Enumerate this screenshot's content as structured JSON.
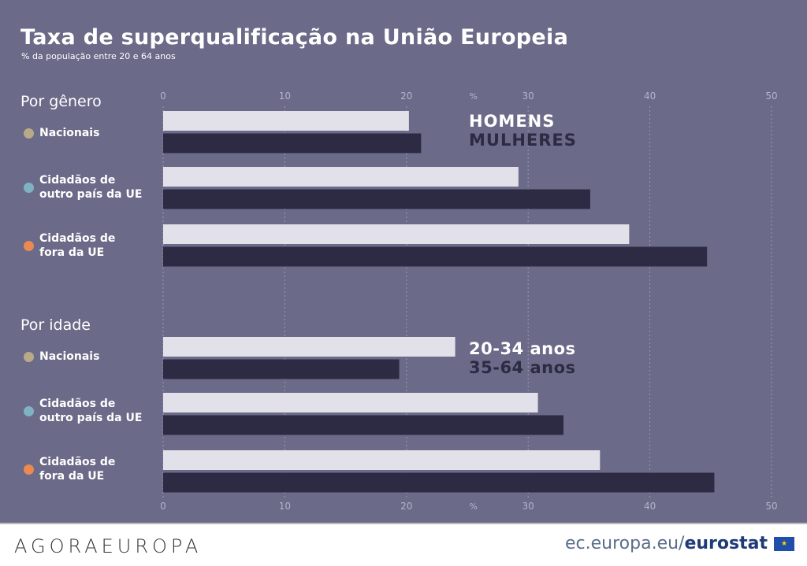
{
  "title": "Taxa de superqualificação na União Europeia",
  "subtitle": "% da população entre 20 e 64 anos",
  "colors": {
    "background": "#6b6a88",
    "light_bar": "#e2e1ea",
    "dark_bar": "#2c2b43",
    "nacionais": "#b8aa88",
    "ue": "#7fb2c2",
    "fora": "#ea8a52"
  },
  "chart_data": [
    {
      "type": "bar",
      "orientation": "horizontal",
      "title": "Por gênero",
      "xlim": [
        0,
        50
      ],
      "ticks": [
        0,
        10,
        20,
        30,
        40,
        50
      ],
      "unit": "%",
      "grid": true,
      "categories": [
        "Nacionais",
        "Cidadãos de outro país da UE",
        "Cidadãos de fora da UE"
      ],
      "series": [
        {
          "name": "HOMENS",
          "values": [
            20.2,
            29.2,
            38.3
          ]
        },
        {
          "name": "MULHERES",
          "values": [
            21.2,
            35.1,
            44.7
          ]
        }
      ]
    },
    {
      "type": "bar",
      "orientation": "horizontal",
      "title": "Por idade",
      "xlim": [
        0,
        50
      ],
      "ticks": [
        0,
        10,
        20,
        30,
        40,
        50
      ],
      "unit": "%",
      "grid": true,
      "categories": [
        "Nacionais",
        "Cidadãos de outro país da UE",
        "Cidadãos de fora da UE"
      ],
      "series": [
        {
          "name": "20-34 anos",
          "values": [
            24.0,
            30.8,
            35.9
          ]
        },
        {
          "name": "35-64 anos",
          "values": [
            19.4,
            32.9,
            45.3
          ]
        }
      ]
    }
  ],
  "labels": {
    "nac": "Nacionais",
    "ue1": "Cidadãos de",
    "ue2": "outro país da UE",
    "fo1": "Cidadãos de",
    "fo2": "fora da UE"
  },
  "footer": {
    "logo": "AGORAEUROPA",
    "source_prefix": "ec.europa.eu/",
    "source_brand": "eurostat"
  }
}
